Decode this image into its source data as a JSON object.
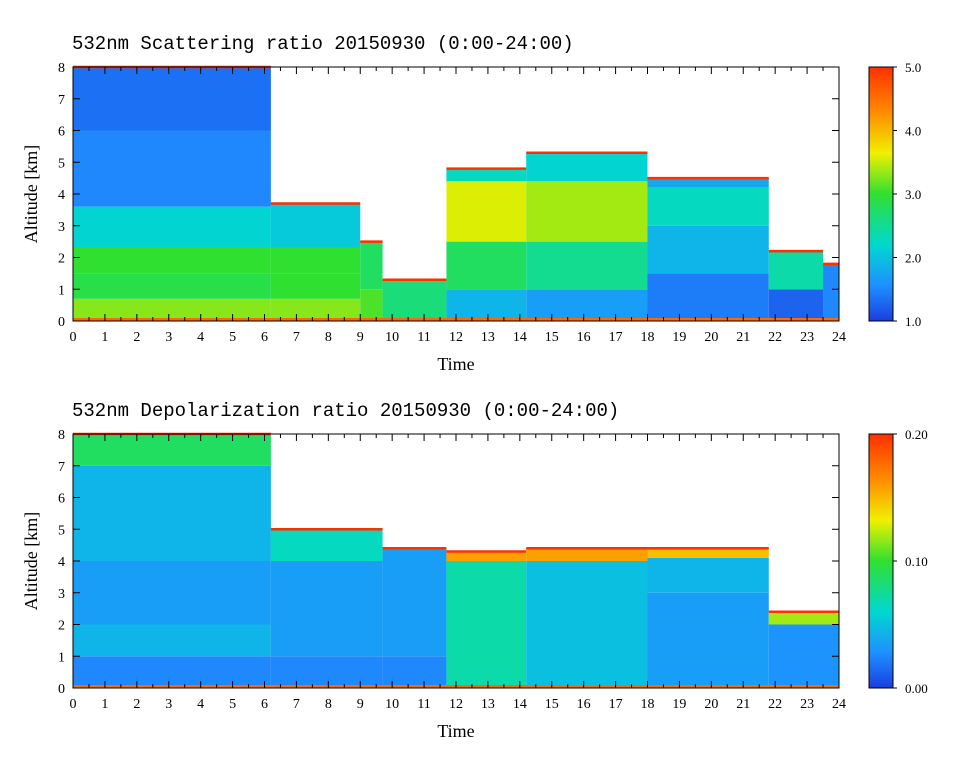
{
  "chart_data": [
    {
      "type": "heatmap",
      "title": "532nm Scattering ratio  20150930 (0:00-24:00)",
      "xlabel": "Time",
      "ylabel": "Altitude [km]",
      "xlim": [
        0,
        24
      ],
      "ylim": [
        0,
        8
      ],
      "x_ticks": [
        "0",
        "1",
        "2",
        "3",
        "4",
        "5",
        "6",
        "7",
        "8",
        "9",
        "10",
        "11",
        "12",
        "13",
        "14",
        "15",
        "16",
        "17",
        "18",
        "19",
        "20",
        "21",
        "22",
        "23",
        "24"
      ],
      "y_ticks": [
        "0",
        "1",
        "2",
        "3",
        "4",
        "5",
        "6",
        "7",
        "8"
      ],
      "colorbar": {
        "range": [
          1.0,
          5.0
        ],
        "ticks": [
          "1.0",
          "2.0",
          "3.0",
          "4.0",
          "5.0"
        ],
        "colors": [
          "#1a3fe0",
          "#1e90ff",
          "#00d8d0",
          "#30e030",
          "#f0f000",
          "#ff8c00",
          "#ff3000"
        ]
      },
      "masked_color": "#ffffff",
      "segments": [
        {
          "x": [
            0,
            6.2
          ],
          "cloud_top_km": 8.0,
          "layers": [
            {
              "y": [
                0.0,
                0.7
              ],
              "value": 3.3
            },
            {
              "y": [
                0.7,
                1.5
              ],
              "value": 2.9
            },
            {
              "y": [
                1.5,
                2.3
              ],
              "value": 3.0
            },
            {
              "y": [
                2.3,
                3.6
              ],
              "value": 2.3
            },
            {
              "y": [
                3.6,
                6.0
              ],
              "value": 1.6
            },
            {
              "y": [
                6.0,
                8.0
              ],
              "value": 1.4
            }
          ]
        },
        {
          "x": [
            6.2,
            9.0
          ],
          "cloud_top_km": 3.7,
          "layers": [
            {
              "y": [
                0.0,
                0.7
              ],
              "value": 3.3
            },
            {
              "y": [
                0.7,
                1.5
              ],
              "value": 3.0
            },
            {
              "y": [
                1.5,
                2.3
              ],
              "value": 3.0
            },
            {
              "y": [
                2.3,
                3.7
              ],
              "value": 2.2
            }
          ]
        },
        {
          "x": [
            9.0,
            9.7
          ],
          "cloud_top_km": 2.5,
          "layers": [
            {
              "y": [
                0.0,
                1.0
              ],
              "value": 3.1
            },
            {
              "y": [
                1.0,
                2.5
              ],
              "value": 2.8
            }
          ]
        },
        {
          "x": [
            9.7,
            11.7
          ],
          "cloud_top_km": 1.3,
          "layers": [
            {
              "y": [
                0.0,
                1.3
              ],
              "value": 2.7
            }
          ]
        },
        {
          "x": [
            11.7,
            14.2
          ],
          "cloud_top_km": 4.8,
          "layers": [
            {
              "y": [
                0.0,
                1.0
              ],
              "value": 2.0
            },
            {
              "y": [
                1.0,
                2.5
              ],
              "value": 2.8
            },
            {
              "y": [
                2.5,
                4.4
              ],
              "value": 3.6
            },
            {
              "y": [
                4.4,
                4.8
              ],
              "value": 2.4
            }
          ]
        },
        {
          "x": [
            14.2,
            18.0
          ],
          "cloud_top_km": 5.3,
          "layers": [
            {
              "y": [
                0.0,
                1.0
              ],
              "value": 1.8
            },
            {
              "y": [
                1.0,
                2.5
              ],
              "value": 2.6
            },
            {
              "y": [
                2.5,
                4.4
              ],
              "value": 3.4
            },
            {
              "y": [
                4.4,
                5.3
              ],
              "value": 2.3
            }
          ]
        },
        {
          "x": [
            18.0,
            21.8
          ],
          "cloud_top_km": 4.5,
          "layers": [
            {
              "y": [
                0.0,
                1.5
              ],
              "value": 1.5
            },
            {
              "y": [
                1.5,
                3.0
              ],
              "value": 2.0
            },
            {
              "y": [
                3.0,
                4.2
              ],
              "value": 2.4
            },
            {
              "y": [
                4.2,
                4.5
              ],
              "value": 1.9
            }
          ]
        },
        {
          "x": [
            21.8,
            23.5
          ],
          "cloud_top_km": 2.2,
          "layers": [
            {
              "y": [
                0.0,
                1.0
              ],
              "value": 1.3
            },
            {
              "y": [
                1.0,
                2.2
              ],
              "value": 2.5
            }
          ]
        },
        {
          "x": [
            23.5,
            24.0
          ],
          "cloud_top_km": 1.8,
          "layers": [
            {
              "y": [
                0.0,
                1.8
              ],
              "value": 1.6
            }
          ]
        }
      ]
    },
    {
      "type": "heatmap",
      "title": "532nm Depolarization ratio  20150930 (0:00-24:00)",
      "xlabel": "Time",
      "ylabel": "Altitude [km]",
      "xlim": [
        0,
        24
      ],
      "ylim": [
        0,
        8
      ],
      "x_ticks": [
        "0",
        "1",
        "2",
        "3",
        "4",
        "5",
        "6",
        "7",
        "8",
        "9",
        "10",
        "11",
        "12",
        "13",
        "14",
        "15",
        "16",
        "17",
        "18",
        "19",
        "20",
        "21",
        "22",
        "23",
        "24"
      ],
      "y_ticks": [
        "0",
        "1",
        "2",
        "3",
        "4",
        "5",
        "6",
        "7",
        "8"
      ],
      "colorbar": {
        "range": [
          0.0,
          0.2
        ],
        "ticks": [
          "0.00",
          "0.10",
          "0.20"
        ],
        "colors": [
          "#1a3fe0",
          "#1e90ff",
          "#00d8d0",
          "#30e030",
          "#f0f000",
          "#ff8c00",
          "#ff3000"
        ]
      },
      "masked_color": "#ffffff",
      "segments": [
        {
          "x": [
            0,
            6.2
          ],
          "cloud_top_km": 8.0,
          "layers": [
            {
              "y": [
                0.0,
                1.0
              ],
              "value": 0.03
            },
            {
              "y": [
                1.0,
                2.0
              ],
              "value": 0.05
            },
            {
              "y": [
                2.0,
                4.0
              ],
              "value": 0.04
            },
            {
              "y": [
                4.0,
                7.0
              ],
              "value": 0.05
            },
            {
              "y": [
                7.0,
                8.0
              ],
              "value": 0.09
            }
          ]
        },
        {
          "x": [
            6.2,
            9.7
          ],
          "cloud_top_km": 5.0,
          "layers": [
            {
              "y": [
                0.0,
                1.0
              ],
              "value": 0.03
            },
            {
              "y": [
                1.0,
                4.0
              ],
              "value": 0.04
            },
            {
              "y": [
                4.0,
                5.0
              ],
              "value": 0.07
            }
          ]
        },
        {
          "x": [
            9.7,
            11.7
          ],
          "cloud_top_km": 4.4,
          "layers": [
            {
              "y": [
                0.0,
                1.0
              ],
              "value": 0.03
            },
            {
              "y": [
                1.0,
                4.4
              ],
              "value": 0.04
            }
          ]
        },
        {
          "x": [
            11.7,
            14.2
          ],
          "cloud_top_km": 4.3,
          "layers": [
            {
              "y": [
                0.0,
                4.0
              ],
              "value": 0.075
            },
            {
              "y": [
                4.0,
                4.3
              ],
              "value": 0.16
            }
          ]
        },
        {
          "x": [
            14.2,
            18.0
          ],
          "cloud_top_km": 4.4,
          "layers": [
            {
              "y": [
                0.0,
                4.0
              ],
              "value": 0.055
            },
            {
              "y": [
                4.0,
                4.4
              ],
              "value": 0.16
            }
          ]
        },
        {
          "x": [
            18.0,
            21.8
          ],
          "cloud_top_km": 4.4,
          "layers": [
            {
              "y": [
                0.0,
                3.0
              ],
              "value": 0.04
            },
            {
              "y": [
                3.0,
                4.1
              ],
              "value": 0.05
            },
            {
              "y": [
                4.1,
                4.4
              ],
              "value": 0.15
            }
          ]
        },
        {
          "x": [
            21.8,
            24.0
          ],
          "cloud_top_km": 2.4,
          "layers": [
            {
              "y": [
                0.0,
                2.0
              ],
              "value": 0.035
            },
            {
              "y": [
                2.0,
                2.4
              ],
              "value": 0.12
            }
          ]
        }
      ]
    }
  ]
}
